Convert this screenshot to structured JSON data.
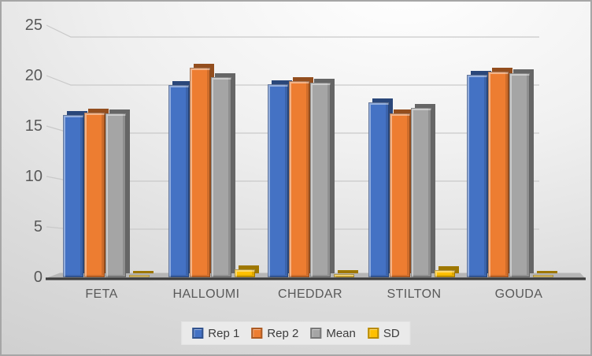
{
  "chart_data": {
    "type": "bar",
    "title": "",
    "xlabel": "",
    "ylabel": "",
    "categories": [
      "FETA",
      "HALLOUMI",
      "CHEDDAR",
      "STILTON",
      "GOUDA"
    ],
    "series": [
      {
        "name": "Rep 1",
        "color": "#4472C4",
        "values": [
          16.0,
          18.9,
          19.0,
          17.2,
          19.9
        ]
      },
      {
        "name": "Rep 2",
        "color": "#ED7D31",
        "values": [
          16.2,
          20.6,
          19.3,
          16.1,
          20.2
        ]
      },
      {
        "name": "Mean",
        "color": "#A5A5A5",
        "values": [
          16.1,
          19.7,
          19.15,
          16.65,
          20.05
        ]
      },
      {
        "name": "SD",
        "color": "#FFC000",
        "values": [
          0.2,
          0.8,
          0.3,
          0.7,
          0.25
        ]
      }
    ],
    "ylim": [
      0,
      25
    ],
    "yticks": [
      0,
      5,
      10,
      15,
      20,
      25
    ],
    "grid": true,
    "legend_position": "bottom",
    "style": "excel-3d-bevel-columns",
    "axis_text_color": "#595959",
    "legend_text_color": "#3d3d3d",
    "gridline_color": "#c9c9c9",
    "floor_color": "#b6b6b6",
    "floor_edge_color": "#3d3d3d"
  }
}
